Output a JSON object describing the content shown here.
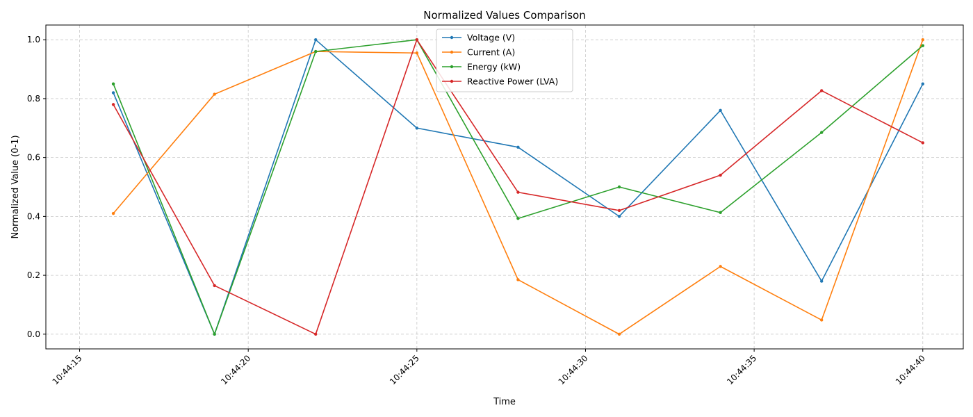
{
  "chart_data": {
    "type": "line",
    "title": "Normalized Values Comparison",
    "xlabel": "Time",
    "ylabel": "Normalized Value (0-1)",
    "x": [
      "10:44:16",
      "10:44:19",
      "10:44:22",
      "10:44:25",
      "10:44:28",
      "10:44:31",
      "10:44:34",
      "10:44:37",
      "10:44:40"
    ],
    "x_seconds": [
      16,
      19,
      22,
      25,
      28,
      31,
      34,
      37,
      40
    ],
    "xlim_seconds": [
      14.0,
      41.2
    ],
    "ylim": [
      -0.05,
      1.05
    ],
    "xticks": [
      {
        "label": "10:44:15",
        "sec": 15
      },
      {
        "label": "10:44:20",
        "sec": 20
      },
      {
        "label": "10:44:25",
        "sec": 25
      },
      {
        "label": "10:44:30",
        "sec": 30
      },
      {
        "label": "10:44:35",
        "sec": 35
      },
      {
        "label": "10:44:40",
        "sec": 40
      }
    ],
    "yticks": [
      0.0,
      0.2,
      0.4,
      0.6,
      0.8,
      1.0
    ],
    "ytick_labels": [
      "0.0",
      "0.2",
      "0.4",
      "0.6",
      "0.8",
      "1.0"
    ],
    "grid": true,
    "legend_position": "top-center",
    "series": [
      {
        "name": "Voltage (V)",
        "color": "#1f77b4",
        "values": [
          0.82,
          0.0,
          1.0,
          0.7,
          0.635,
          0.4,
          0.76,
          0.18,
          0.85
        ]
      },
      {
        "name": "Current (A)",
        "color": "#ff7f0e",
        "values": [
          0.41,
          0.815,
          0.96,
          0.955,
          0.185,
          0.0,
          0.23,
          0.048,
          1.0
        ]
      },
      {
        "name": "Energy (kW)",
        "color": "#2ca02c",
        "values": [
          0.85,
          0.0,
          0.96,
          1.0,
          0.393,
          0.5,
          0.413,
          0.685,
          0.98
        ]
      },
      {
        "name": "Reactive Power (LVA)",
        "color": "#d62728",
        "values": [
          0.78,
          0.165,
          0.0,
          1.0,
          0.482,
          0.42,
          0.54,
          0.827,
          0.65
        ]
      }
    ]
  }
}
